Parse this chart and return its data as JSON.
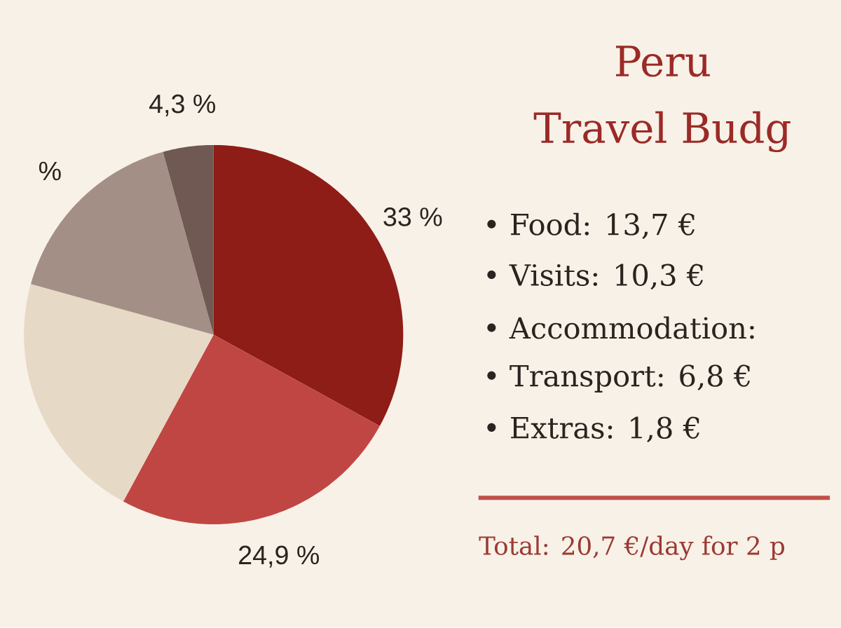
{
  "chart_data": {
    "type": "pie",
    "title": "Peru Travel Budg",
    "categories": [
      null,
      null,
      null,
      null,
      null
    ],
    "values": [
      33,
      24.9,
      21.4,
      16.4,
      4.3
    ],
    "colors": [
      "#8e1c17",
      "#c04644",
      "#e6d9c6",
      "#a48f86",
      "#6f5952"
    ],
    "value_labels": [
      "33 %",
      "24,9 %",
      null,
      "%",
      "4,3 %"
    ],
    "annotations": [
      "• Food: 13,7 €",
      "• Visits: 10,3 €",
      "• Accommodation:",
      "• Transport: 6,8 €",
      "• Extras: 1,8 €",
      "Total: 20,7 €/day for 2 p"
    ]
  }
}
